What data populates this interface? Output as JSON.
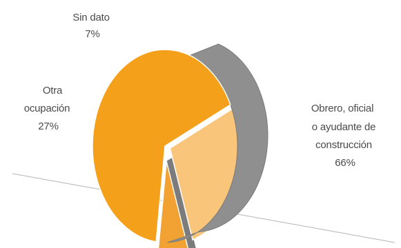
{
  "chart_data": {
    "type": "pie",
    "style": "3d-exploded",
    "title": "",
    "slices": [
      {
        "label_lines": [
          "Obrero, oficial",
          "o ayudante de",
          "construcción"
        ],
        "pct_label": "66%",
        "value": 66,
        "color": "#f5a01a"
      },
      {
        "label_lines": [
          "Otra",
          "ocupación"
        ],
        "pct_label": "27%",
        "value": 27,
        "color": "#f8c57a"
      },
      {
        "label_lines": [
          "Sin dato"
        ],
        "pct_label": "7%",
        "value": 7,
        "color": "#f2a232"
      }
    ],
    "side_color": "#8f8f8f"
  }
}
